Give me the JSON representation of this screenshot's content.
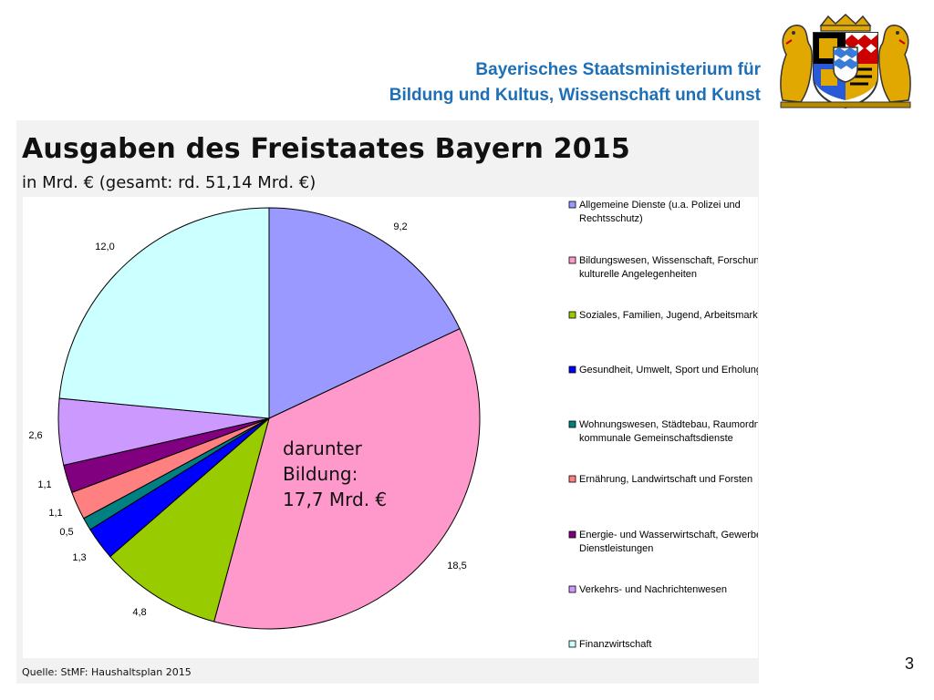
{
  "header": {
    "ministry_line1": "Bayerisches Staatsministerium für",
    "ministry_line2": "Bildung und Kultus, Wissenschaft und Kunst"
  },
  "slide": {
    "title": "Ausgaben des Freistaates Bayern 2015",
    "subtitle": "in Mrd. € (gesamt: rd. 51,14 Mrd. €)",
    "callout_line1": "darunter",
    "callout_line2": "Bildung:",
    "callout_line3": "17,7 Mrd. €",
    "source": "Quelle: StMF: Haushaltsplan 2015",
    "page_number": "3"
  },
  "chart_data": {
    "type": "pie",
    "title": "Ausgaben des Freistaates Bayern 2015",
    "unit": "Mrd. €",
    "total": 51.14,
    "legend_position": "right",
    "slices": [
      {
        "name": "Allgemeine Dienste (u.a. Polizei und Rechtsschutz)",
        "legend_lines": [
          "Allgemeine Dienste (u.a. Polizei und",
          "Rechtsschutz)"
        ],
        "value": 9.2,
        "label": "9,2",
        "color": "#9999ff"
      },
      {
        "name": "Bildungswesen, Wissenschaft, Forschung, kulturelle Angelegenheiten",
        "legend_lines": [
          "Bildungswesen, Wissenschaft, Forschung,",
          "kulturelle Angelegenheiten"
        ],
        "value": 18.5,
        "label": "18,5",
        "color": "#ff99cc"
      },
      {
        "name": "Soziales, Familien, Jugend, Arbeitsmarkt",
        "legend_lines": [
          "Soziales, Familien, Jugend, Arbeitsmarkt"
        ],
        "value": 4.8,
        "label": "4,8",
        "color": "#99cc00"
      },
      {
        "name": "Gesundheit, Umwelt, Sport und Erholung",
        "legend_lines": [
          "Gesundheit, Umwelt, Sport und Erholung"
        ],
        "value": 1.3,
        "label": "1,3",
        "color": "#0000ff"
      },
      {
        "name": "Wohnungswesen, Städtebau, Raumordnung und kommunale Gemeinschaftsdienste",
        "legend_lines": [
          "Wohnungswesen, Städtebau, Raumordnung und",
          "kommunale Gemeinschaftsdienste"
        ],
        "value": 0.5,
        "label": "0,5",
        "color": "#008080"
      },
      {
        "name": "Ernährung, Landwirtschaft und Forsten",
        "legend_lines": [
          "Ernährung, Landwirtschaft und Forsten"
        ],
        "value": 1.1,
        "label": "1,1",
        "color": "#ff8080"
      },
      {
        "name": "Energie- und Wasserwirtschaft, Gewerbe, Dienstleistungen",
        "legend_lines": [
          "Energie- und Wasserwirtschaft, Gewerbe,",
          "Dienstleistungen"
        ],
        "value": 1.1,
        "label": "1,1",
        "color": "#800080"
      },
      {
        "name": "Verkehrs- und Nachrichtenwesen",
        "legend_lines": [
          "Verkehrs- und Nachrichtenwesen"
        ],
        "value": 2.6,
        "label": "2,6",
        "color": "#cc99ff"
      },
      {
        "name": "Finanzwirtschaft",
        "legend_lines": [
          "Finanzwirtschaft"
        ],
        "value": 12.0,
        "label": "12,0",
        "color": "#ccffff"
      }
    ]
  }
}
